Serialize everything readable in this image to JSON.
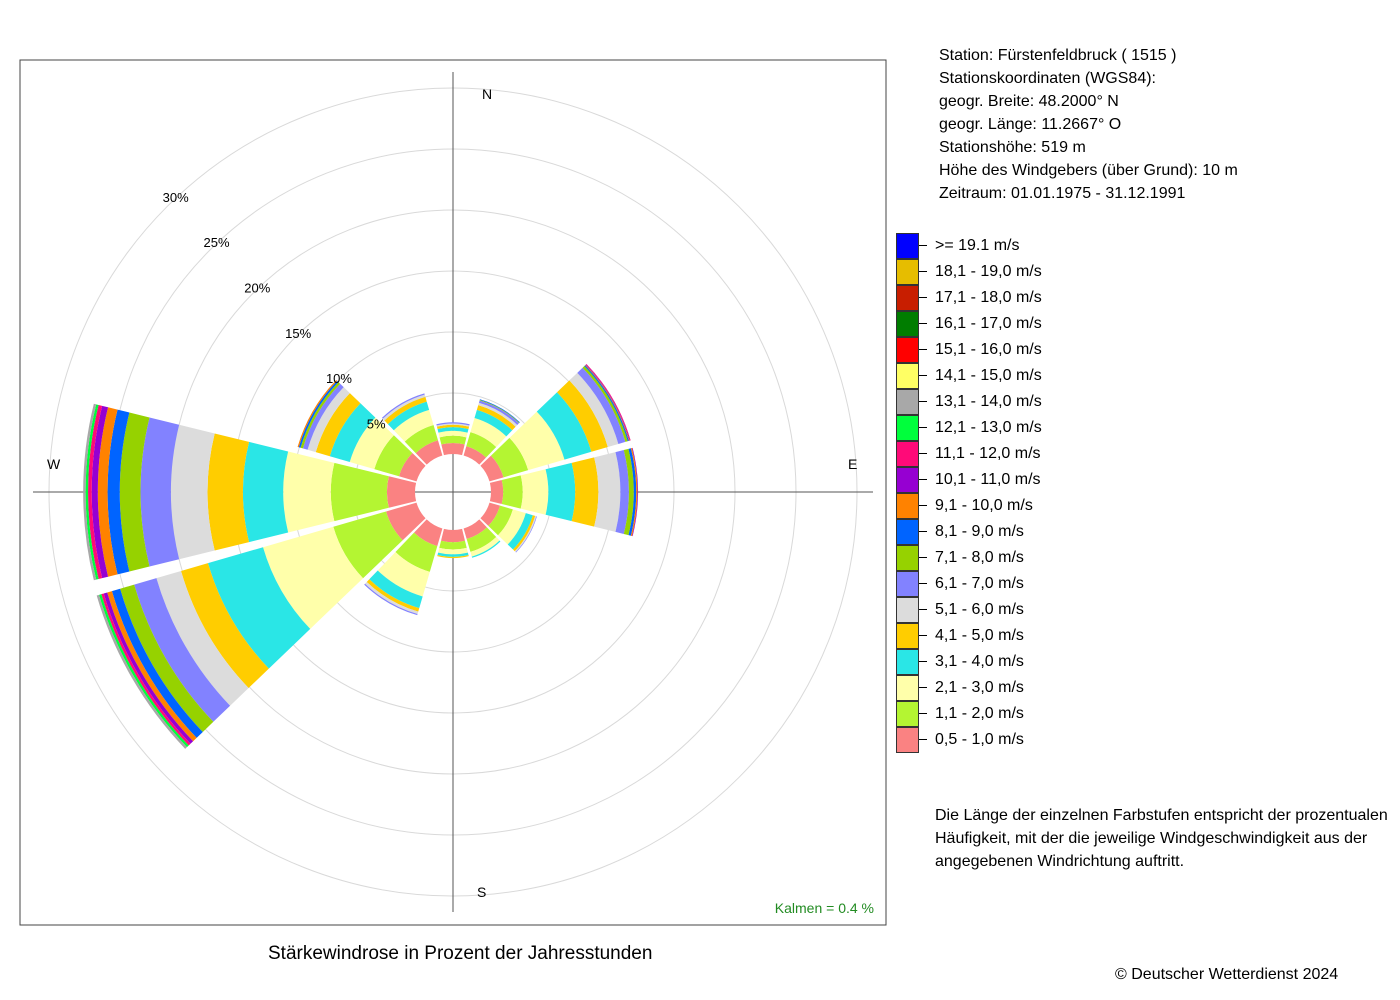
{
  "info": {
    "station": "Station:  Fürstenfeldbruck  ( 1515 )",
    "coords_header": "Stationskoordinaten (WGS84):",
    "lat": "geogr. Breite: 48.2000° N",
    "lon": "geogr. Länge: 11.2667° O",
    "elevation": "Stationshöhe: 519 m",
    "sensor_height": "Höhe des Windgebers (über Grund): 10 m",
    "period": "Zeitraum: 01.01.1975 - 31.12.1991"
  },
  "note": "Die Länge der einzelnen Farbstufen entspricht der prozentualen Häufigkeit, mit der die jeweilige Windgeschwindigkeit aus der angegebenen Windrichtung auftritt.",
  "title": "Stärkewindrose in Prozent der Jahresstunden",
  "copyright": "© Deutscher Wetterdienst  2024",
  "calm": "Kalmen  =  0.4 %",
  "compass": {
    "N": "N",
    "E": "E",
    "S": "S",
    "W": "W"
  },
  "chart_data": {
    "type": "wind_rose",
    "radial_unit": "%",
    "radial_ticks": [
      5,
      10,
      15,
      20,
      25,
      30
    ],
    "radial_tick_labels": [
      "5%",
      "10%",
      "15%",
      "20%",
      "25%",
      "30%"
    ],
    "calm_percent": 0.4,
    "directions_deg": [
      0,
      30,
      60,
      90,
      120,
      150,
      180,
      210,
      240,
      270,
      300,
      330
    ],
    "bins": [
      {
        "label": ">= 19.1 m/s",
        "color": "#0000ff"
      },
      {
        "label": "18,1 - 19,0 m/s",
        "color": "#e6bd00"
      },
      {
        "label": "17,1 - 18,0 m/s",
        "color": "#c81e00"
      },
      {
        "label": "16,1 - 17,0 m/s",
        "color": "#007d00"
      },
      {
        "label": "15,1 - 16,0 m/s",
        "color": "#ff0000"
      },
      {
        "label": "14,1 - 15,0 m/s",
        "color": "#ffff64"
      },
      {
        "label": "13,1 - 14,0 m/s",
        "color": "#a8a8a8"
      },
      {
        "label": "12,1 - 13,0 m/s",
        "color": "#00ff3c"
      },
      {
        "label": "11,1 - 12,0 m/s",
        "color": "#ff0a78"
      },
      {
        "label": "10,1 - 11,0 m/s",
        "color": "#9600d2"
      },
      {
        "label": "9,1 - 10,0 m/s",
        "color": "#ff8200"
      },
      {
        "label": "8,1 - 9,0 m/s",
        "color": "#0064ff"
      },
      {
        "label": "7,1 - 8,0 m/s",
        "color": "#96d200"
      },
      {
        "label": "6,1 - 7,0 m/s",
        "color": "#8282ff"
      },
      {
        "label": "5,1 - 6,0 m/s",
        "color": "#dcdcdc"
      },
      {
        "label": "4,1 - 5,0 m/s",
        "color": "#ffcd00"
      },
      {
        "label": "3,1 - 4,0 m/s",
        "color": "#2ae6e6"
      },
      {
        "label": "2,1 - 3,0 m/s",
        "color": "#ffffaa"
      },
      {
        "label": "1,1 - 2,0 m/s",
        "color": "#b4f532"
      },
      {
        "label": "0,5 - 1,0 m/s",
        "color": "#fa8282"
      }
    ],
    "sectors": [
      {
        "dir": 0,
        "cumulative": [
          0.9,
          1.5,
          1.9,
          2.2,
          2.4,
          2.5,
          2.6
        ]
      },
      {
        "dir": 30,
        "cumulative": [
          0.8,
          2.0,
          3.2,
          3.9,
          4.3,
          4.5,
          4.7,
          4.75,
          4.8
        ]
      },
      {
        "dir": 60,
        "cumulative": [
          1.2,
          3.3,
          6.4,
          8.7,
          10.1,
          11.0,
          11.6,
          11.8,
          11.9,
          11.95,
          12.0,
          12.05
        ]
      },
      {
        "dir": 90,
        "cumulative": [
          1.0,
          2.6,
          4.7,
          6.9,
          8.8,
          10.6,
          11.3,
          11.7,
          11.9,
          12.0,
          12.05
        ]
      },
      {
        "dir": 120,
        "cumulative": [
          0.9,
          2.0,
          3.1,
          3.7,
          3.9,
          4.0,
          4.05
        ]
      },
      {
        "dir": 150,
        "cumulative": [
          0.9,
          2.0,
          2.4,
          2.5
        ]
      },
      {
        "dir": 180,
        "cumulative": [
          1.0,
          1.6,
          2.0,
          2.2,
          2.3
        ]
      },
      {
        "dir": 210,
        "cumulative": [
          1.5,
          3.7,
          5.8,
          6.8,
          7.1,
          7.3,
          7.4
        ]
      },
      {
        "dir": 240,
        "cumulative": [
          2.6,
          7.1,
          13.1,
          17.8,
          20.1,
          22.2,
          24.1,
          25.3,
          26.0,
          26.4,
          26.7,
          26.9,
          27.1,
          27.3
        ]
      },
      {
        "dir": 270,
        "cumulative": [
          2.3,
          6.9,
          10.8,
          14.1,
          17.0,
          20.0,
          22.5,
          24.2,
          25.2,
          26.0,
          26.5,
          26.8,
          27.0,
          27.2
        ]
      },
      {
        "dir": 300,
        "cumulative": [
          1.5,
          3.6,
          5.7,
          7.4,
          8.6,
          9.3,
          9.7,
          9.9,
          10.05,
          10.15
        ]
      },
      {
        "dir": 330,
        "cumulative": [
          1.3,
          2.6,
          3.9,
          4.6,
          5.0,
          5.2,
          5.3
        ]
      }
    ]
  }
}
